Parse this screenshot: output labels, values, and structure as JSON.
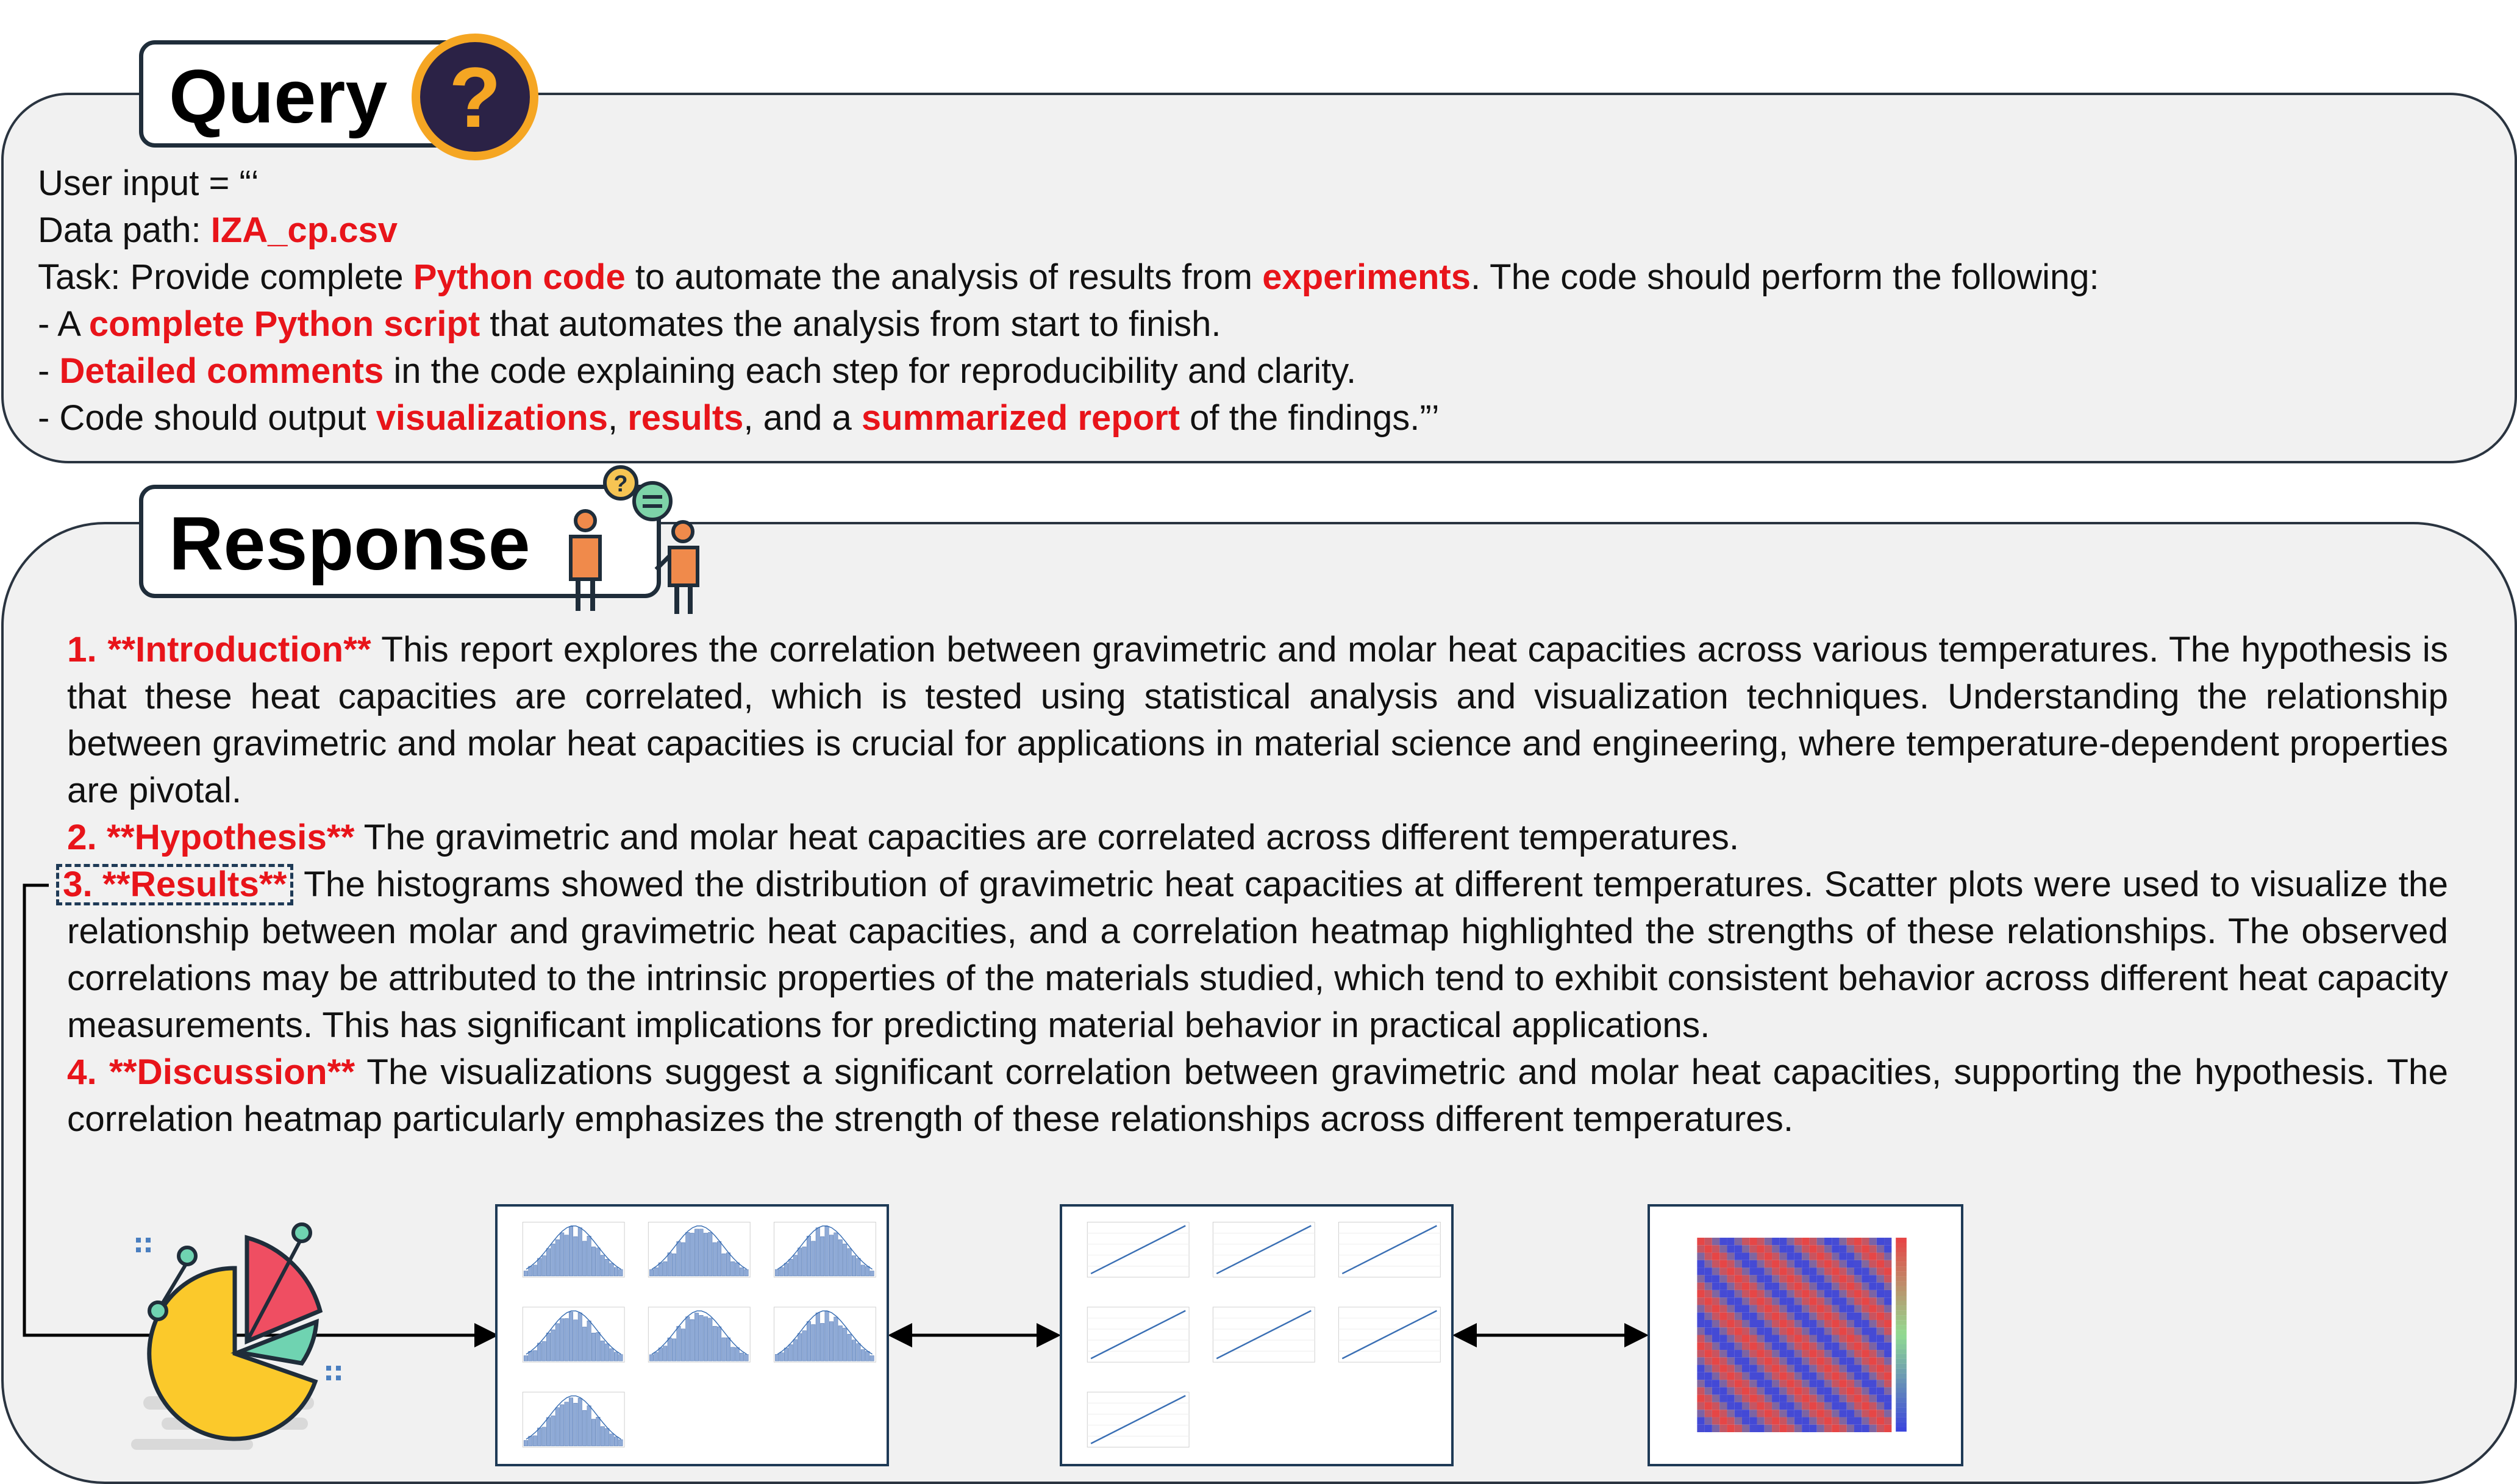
{
  "query": {
    "title": "Query",
    "icon": "question-mark-icon",
    "line1": "User input = “‘",
    "line2_prefix": "Data path: ",
    "line2_file": "IZA_cp.csv",
    "line3_a": "Task: Provide complete ",
    "line3_b": "Python code",
    "line3_c": " to automate the analysis of results from ",
    "line3_d": "experiments",
    "line3_e": ". The code should perform the following:",
    "line4_a": "- A ",
    "line4_b": "complete Python script",
    "line4_c": " that automates the analysis from start to finish.",
    "line5_a": "- ",
    "line5_b": "Detailed comments",
    "line5_c": " in the code explaining each step for reproducibility and clarity.",
    "line6_a": "- Code should output ",
    "line6_b": "visualizations",
    "line6_c": ", ",
    "line6_d": "results",
    "line6_e": ", and a ",
    "line6_f": "summarized report",
    "line6_g": " of the findings.”’"
  },
  "response": {
    "title": "Response",
    "icon": "conversation-people-icon",
    "sections": [
      {
        "heading": "1. **Introduction**",
        "text": " This report explores the correlation between gravimetric and molar heat capacities across various temperatures. The hypothesis is that these heat capacities are correlated, which is tested using statistical analysis and visualization techniques. Understanding the relationship between gravimetric and molar heat capacities is crucial for applications in material science and engineering, where temperature-dependent properties are pivotal."
      },
      {
        "heading": "2. **Hypothesis**",
        "text": "  The gravimetric and molar heat capacities are correlated across different temperatures."
      },
      {
        "heading": "3. **Results**",
        "text": " The histograms showed the distribution of gravimetric heat capacities at different temperatures. Scatter plots were used to visualize the relationship between molar and gravimetric heat capacities, and a correlation heatmap highlighted the strengths of these relationships. The observed correlations may be attributed to the intrinsic properties of the materials studied, which tend to exhibit consistent behavior across different heat capacity measurements. This has significant implications for predicting material behavior in practical applications."
      },
      {
        "heading": "4. **Discussion**",
        "text": " The visualizations suggest a significant correlation between gravimetric and molar heat capacities, supporting the hypothesis. The correlation heatmap particularly emphasizes the strength of these relationships across different temperatures."
      }
    ]
  },
  "figures": {
    "illustration_icon": "pie-chart-analytics-icon",
    "histograms_icon": "histogram-grid-icon",
    "scatter_icon": "scatter-plot-grid-icon",
    "heatmap_icon": "correlation-heatmap-icon"
  },
  "colors": {
    "panel_bg": "#f1f1f1",
    "accent_red": "#e8141a",
    "border_dark": "#1f2d3a",
    "histogram_blue": "#8faad6",
    "line_blue": "#3a6fb4"
  }
}
